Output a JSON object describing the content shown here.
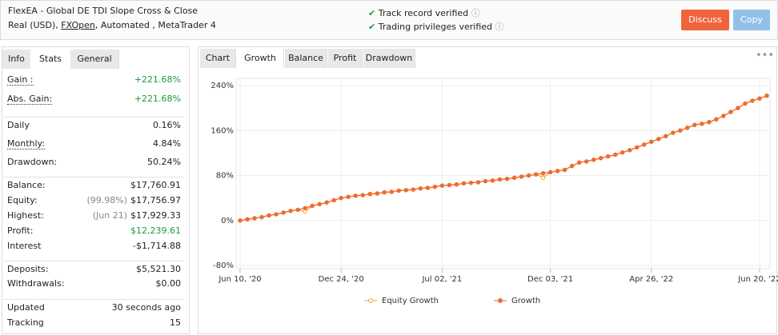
{
  "header": {
    "title": "FlexEA - Global DE TDI Slope Cross & Close",
    "account": "Real (USD),",
    "broker": "FXOpen",
    "details": ", Automated , MetaTrader 4",
    "verifications": [
      "Track record verified",
      "Trading privileges verified"
    ],
    "buttons": [
      "Discuss",
      "Copy"
    ]
  },
  "left_tabs": [
    "Info",
    "Stats",
    "General"
  ],
  "stats": [
    [
      {
        "label": "Gain :",
        "value": "+221.68%"
      },
      {
        "label": "Abs. Gain:",
        "value": "+221.68%"
      }
    ],
    [
      {
        "label": "Daily",
        "value": "0.16%"
      },
      {
        "label": "Monthly:",
        "value": "4.84%"
      },
      {
        "label": "Drawdown:",
        "value": "50.24%"
      }
    ],
    [
      {
        "label": "Balance:",
        "value": "$17,760.91"
      },
      {
        "label": "Equity:",
        "note": "(99.98%)",
        "value": "$17,756.97"
      },
      {
        "label": "Highest:",
        "note": "(Jun 21)",
        "value": "$17,929.33"
      },
      {
        "label": "Profit:",
        "value": "$12,239.61"
      },
      {
        "label": "Interest",
        "value": "-$1,714.88"
      }
    ],
    [
      {
        "label": "Deposits:",
        "value": "$5,521.30"
      },
      {
        "label": "Withdrawals:",
        "value": "$0.00"
      }
    ],
    [
      {
        "label": "Updated",
        "value": "30 seconds ago"
      },
      {
        "label": "Tracking",
        "value": "15"
      }
    ]
  ],
  "right_tabs": [
    "Chart",
    "Growth",
    "Balance",
    "Profit",
    "Drawdown"
  ],
  "chart_data": {
    "type": "line",
    "categories": [
      "Jun 10, '20",
      null,
      null,
      null,
      null,
      null,
      null,
      null,
      null,
      null,
      null,
      null,
      null,
      null,
      "Dec 24, '20",
      null,
      null,
      null,
      null,
      null,
      null,
      null,
      null,
      null,
      null,
      null,
      null,
      null,
      "Jul 02, '21",
      null,
      null,
      null,
      null,
      null,
      null,
      null,
      null,
      null,
      null,
      null,
      null,
      null,
      null,
      "Dec 03, '21",
      null,
      null,
      null,
      null,
      null,
      null,
      null,
      null,
      null,
      null,
      null,
      null,
      null,
      "Apr 26, '22",
      null,
      null,
      null,
      null,
      null,
      null,
      null,
      null,
      null,
      null,
      null,
      null,
      null,
      null,
      "Jun 20, '22",
      null
    ],
    "series": [
      {
        "name": "Equity Growth",
        "color": "#f2a93b",
        "values": [
          0,
          2,
          4,
          6,
          9,
          11,
          14,
          17,
          19,
          16,
          26,
          29,
          32,
          36,
          40,
          42,
          44,
          45,
          47,
          48,
          50,
          51,
          53,
          54,
          55,
          57,
          58,
          60,
          62,
          63,
          64,
          66,
          67,
          68,
          70,
          71,
          73,
          74,
          76,
          78,
          80,
          82,
          76,
          86,
          88,
          90,
          97,
          103,
          105,
          108,
          111,
          114,
          117,
          121,
          125,
          130,
          135,
          140,
          145,
          150,
          156,
          160,
          165,
          170,
          172,
          175,
          180,
          186,
          193,
          200,
          208,
          213,
          217,
          222
        ]
      },
      {
        "name": "Growth",
        "color": "#ee6b33",
        "values": [
          0,
          2,
          4,
          6,
          9,
          11,
          14,
          17,
          19,
          22,
          26,
          29,
          32,
          36,
          40,
          42,
          44,
          45,
          47,
          48,
          50,
          51,
          53,
          54,
          55,
          57,
          58,
          60,
          62,
          63,
          64,
          66,
          67,
          68,
          70,
          71,
          73,
          74,
          76,
          78,
          80,
          82,
          84,
          86,
          88,
          90,
          97,
          103,
          105,
          108,
          111,
          114,
          117,
          121,
          125,
          130,
          135,
          140,
          145,
          150,
          156,
          160,
          165,
          170,
          172,
          175,
          180,
          186,
          193,
          200,
          208,
          213,
          217,
          222
        ]
      }
    ],
    "ylim": [
      -80,
      240
    ],
    "yticks": [
      {
        "value": -80,
        "label": "-80%"
      },
      {
        "value": 0,
        "label": "0%"
      },
      {
        "value": 80,
        "label": "80%"
      },
      {
        "value": 160,
        "label": "160%"
      },
      {
        "value": 240,
        "label": "240%"
      }
    ],
    "grid": true
  }
}
